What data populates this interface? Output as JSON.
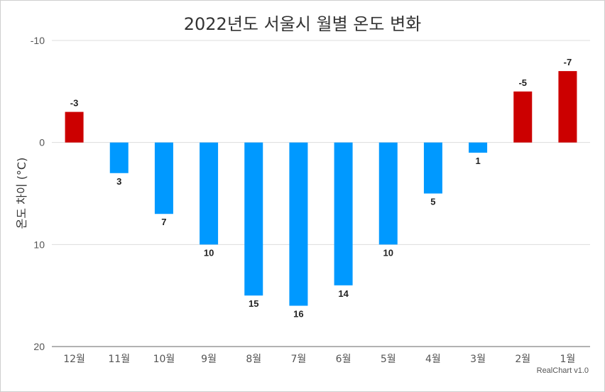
{
  "chart_data": {
    "type": "bar",
    "title": "2022년도 서울시 월별 온도 변화",
    "ylabel": "온도 차이 (°C)",
    "xlabel": "",
    "categories": [
      "12월",
      "11월",
      "10월",
      "9월",
      "8월",
      "7월",
      "6월",
      "5월",
      "4월",
      "3월",
      "2월",
      "1월"
    ],
    "values": [
      -3,
      3,
      7,
      10,
      15,
      16,
      14,
      10,
      5,
      1,
      -5,
      -7
    ],
    "ylim": [
      -10,
      20
    ],
    "y_axis_reversed": true,
    "yticks": [
      -10,
      0,
      10,
      20
    ],
    "grid": true,
    "legend": "none",
    "colors": {
      "negative": "#cc0000",
      "positive": "#0099ff"
    }
  },
  "credit": "RealChart v1.0"
}
